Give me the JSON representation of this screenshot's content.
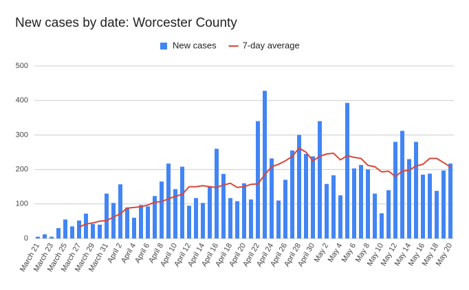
{
  "chart_data": {
    "type": "bar_line",
    "title": "New cases by date: Worcester County",
    "categories": [
      "March 21",
      null,
      "March 23",
      null,
      "March 25",
      null,
      "March 27",
      null,
      "March 29",
      null,
      "March 31",
      null,
      "April 2",
      null,
      "April 4",
      null,
      "April 6",
      null,
      "April 8",
      null,
      "April 10",
      null,
      "April 12",
      null,
      "April 14",
      null,
      "April 16",
      null,
      "April 18",
      null,
      "April 20",
      null,
      "April 22",
      null,
      "April 24",
      null,
      "April 26",
      null,
      "April 28",
      null,
      "April 30",
      null,
      "May 2",
      null,
      "May 4",
      null,
      "May 6",
      null,
      "May 8",
      null,
      "May 10",
      null,
      "May 12",
      null,
      "May 14",
      null,
      "May 16",
      null,
      "May 18",
      null,
      "May 20"
    ],
    "series": [
      {
        "name": "New cases",
        "type": "bar",
        "color": "#4285f4",
        "values": [
          5,
          12,
          5,
          30,
          55,
          35,
          52,
          72,
          42,
          40,
          130,
          103,
          157,
          90,
          60,
          97,
          93,
          123,
          165,
          217,
          143,
          208,
          95,
          117,
          103,
          152,
          260,
          187,
          117,
          108,
          160,
          113,
          340,
          428,
          232,
          110,
          170,
          255,
          300,
          245,
          238,
          340,
          158,
          183,
          125,
          393,
          203,
          213,
          200,
          130,
          73,
          140,
          280,
          312,
          230,
          280,
          185,
          188,
          138,
          197,
          217
        ]
      },
      {
        "name": "7-day average",
        "type": "line",
        "color": "#db4437",
        "values": [
          null,
          null,
          null,
          null,
          null,
          null,
          33,
          42,
          45,
          50,
          52,
          62,
          72,
          88,
          90,
          92,
          97,
          105,
          107,
          115,
          122,
          128,
          150,
          150,
          153,
          150,
          148,
          155,
          160,
          148,
          150,
          157,
          158,
          185,
          208,
          215,
          225,
          238,
          262,
          250,
          225,
          238,
          245,
          247,
          228,
          240,
          235,
          232,
          212,
          208,
          193,
          195,
          180,
          195,
          198,
          210,
          215,
          232,
          232,
          220,
          207
        ]
      }
    ],
    "ylim": [
      0,
      500
    ],
    "yticks": [
      0,
      100,
      200,
      300,
      400,
      500
    ],
    "grid": true,
    "legend": "top"
  }
}
